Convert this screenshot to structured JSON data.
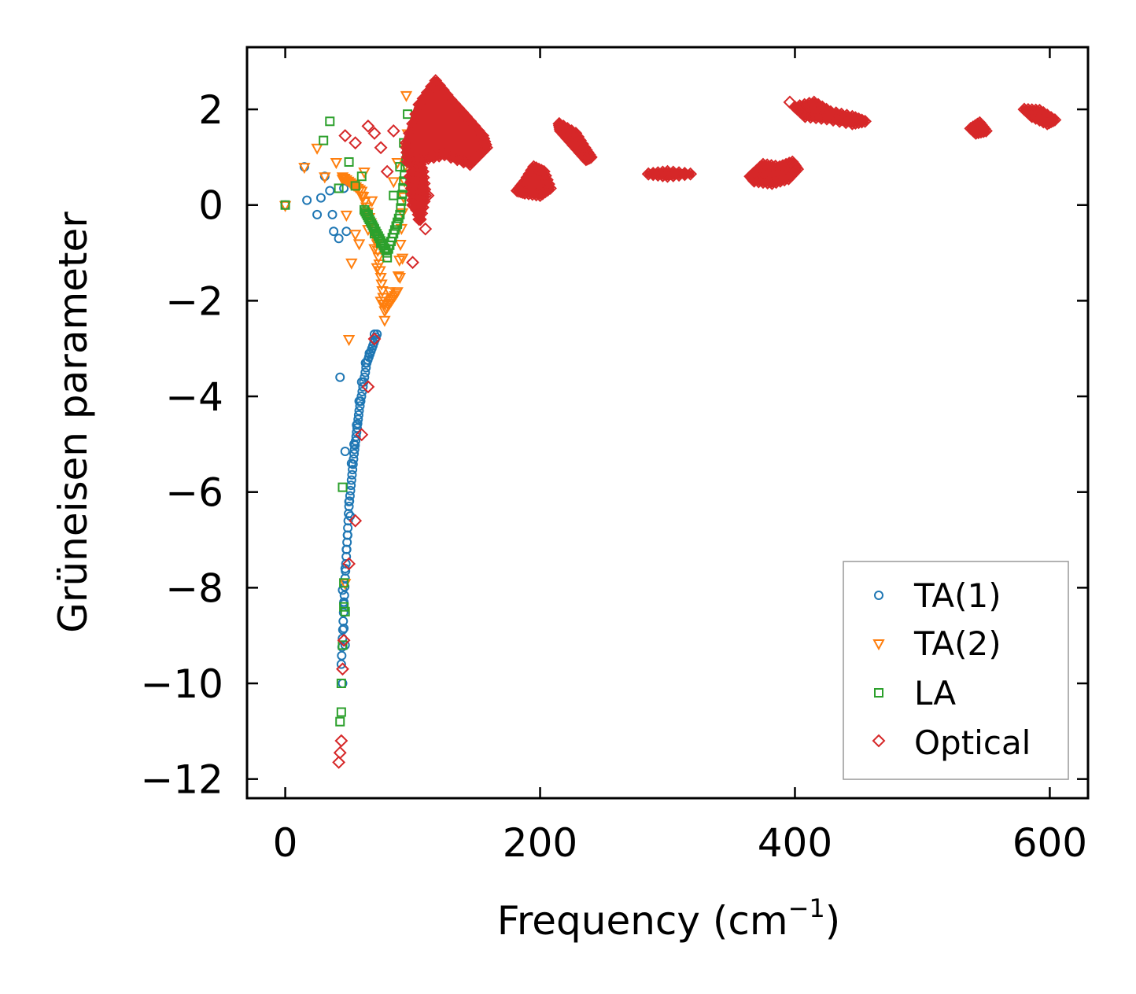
{
  "chart_data": {
    "type": "scatter",
    "title": "",
    "xlabel": "Frequency (cm",
    "xlabel_sup": "−1",
    "xlabel_close": ")",
    "ylabel": "Grüneisen parameter",
    "xlim": [
      -30,
      630
    ],
    "ylim": [
      -12.4,
      3.3
    ],
    "xticks": [
      0,
      200,
      400,
      600
    ],
    "xtick_labels": [
      "0",
      "200",
      "400",
      "600"
    ],
    "yticks": [
      2,
      0,
      -2,
      -4,
      -6,
      -8,
      -10,
      -12
    ],
    "ytick_labels": [
      "2",
      "0",
      "−2",
      "−4",
      "−6",
      "−8",
      "−10",
      "−12"
    ],
    "legend_position": "lower-right",
    "series": [
      {
        "name": "TA(1)",
        "marker": "circle",
        "color": "#1f77b4",
        "points": [
          [
            0,
            0
          ],
          [
            15,
            0.8
          ],
          [
            17,
            0.1
          ],
          [
            25,
            -0.2
          ],
          [
            28,
            0.15
          ],
          [
            31,
            0.6
          ],
          [
            35,
            0.3
          ],
          [
            37,
            -0.2
          ],
          [
            38,
            -0.55
          ],
          [
            42,
            -0.7
          ],
          [
            43,
            -3.6
          ],
          [
            46,
            0.35
          ],
          [
            48,
            -0.55
          ],
          [
            47,
            -5.15
          ],
          [
            45,
            -8.05
          ],
          [
            46,
            -8.85
          ],
          [
            45,
            -10
          ],
          [
            47,
            -9.2
          ],
          [
            50,
            -6.2
          ],
          [
            51,
            -6.5
          ],
          [
            52,
            -5.4
          ],
          [
            54,
            -5
          ],
          [
            56,
            -4.6
          ],
          [
            58,
            -4.1
          ],
          [
            60,
            -3.7
          ],
          [
            63,
            -3.3
          ],
          [
            66,
            -3.1
          ],
          [
            70,
            -2.7
          ],
          [
            48,
            -7.2
          ],
          [
            47,
            -7.6
          ],
          [
            46,
            -8.3
          ],
          [
            49,
            -6.9
          ]
        ],
        "trend": [
          [
            44,
            -9.6
          ],
          [
            47,
            -7.8
          ],
          [
            50,
            -6.3
          ],
          [
            54,
            -5.2
          ],
          [
            58,
            -4.3
          ],
          [
            64,
            -3.3
          ],
          [
            72,
            -2.7
          ]
        ]
      },
      {
        "name": "TA(2)",
        "marker": "triangle-down",
        "color": "#ff7f0e",
        "points": [
          [
            0,
            0
          ],
          [
            15,
            0.8
          ],
          [
            25,
            1.2
          ],
          [
            31,
            0.6
          ],
          [
            40,
            0.9
          ],
          [
            45,
            0.55
          ],
          [
            48,
            -0.2
          ],
          [
            50,
            -2.8
          ],
          [
            55,
            -0.6
          ],
          [
            58,
            -0.8
          ],
          [
            60,
            0.2
          ],
          [
            62,
            0.7
          ],
          [
            65,
            -0.5
          ],
          [
            68,
            0.1
          ],
          [
            70,
            -0.9
          ],
          [
            72,
            -1.3
          ],
          [
            75,
            -2
          ],
          [
            78,
            -2.4
          ],
          [
            82,
            -1.8
          ],
          [
            85,
            0.5
          ],
          [
            88,
            0.9
          ],
          [
            90,
            -1.5
          ],
          [
            92,
            -1.1
          ],
          [
            95,
            2.3
          ],
          [
            97,
            1.3
          ],
          [
            47,
            -7.9
          ],
          [
            52,
            -1.2
          ]
        ],
        "trend": [
          [
            45,
            0.6
          ],
          [
            60,
            0.3
          ],
          [
            72,
            -0.8
          ],
          [
            78,
            -2.2
          ],
          [
            88,
            -1.8
          ],
          [
            96,
            1.5
          ]
        ]
      },
      {
        "name": "LA",
        "marker": "square",
        "color": "#2ca02c",
        "points": [
          [
            0,
            0
          ],
          [
            30,
            1.35
          ],
          [
            35,
            1.75
          ],
          [
            42,
            0.35
          ],
          [
            45,
            -5.9
          ],
          [
            46,
            -8.4
          ],
          [
            45,
            -9.2
          ],
          [
            44,
            -10
          ],
          [
            44,
            -10.6
          ],
          [
            43,
            -10.8
          ],
          [
            50,
            0.9
          ],
          [
            55,
            0.4
          ],
          [
            60,
            0.6
          ],
          [
            65,
            -0.2
          ],
          [
            70,
            -0.6
          ],
          [
            75,
            -0.8
          ],
          [
            80,
            -1.1
          ],
          [
            85,
            0.2
          ],
          [
            88,
            -0.4
          ],
          [
            90,
            0.8
          ],
          [
            93,
            1.3
          ],
          [
            96,
            1.9
          ],
          [
            98,
            0.5
          ],
          [
            46,
            -7.9
          ],
          [
            47,
            -8.5
          ]
        ],
        "trend": [
          [
            62,
            -0.1
          ],
          [
            70,
            -0.5
          ],
          [
            80,
            -1.0
          ],
          [
            90,
            -0.2
          ],
          [
            96,
            1.2
          ]
        ]
      },
      {
        "name": "Optical",
        "marker": "diamond",
        "color": "#d62728",
        "points": [
          [
            42,
            -11.65
          ],
          [
            43,
            -11.45
          ],
          [
            44,
            -11.2
          ],
          [
            45,
            -9.7
          ],
          [
            46,
            -9.1
          ],
          [
            50,
            -7.5
          ],
          [
            55,
            -6.6
          ],
          [
            60,
            -4.8
          ],
          [
            65,
            -3.8
          ],
          [
            70,
            -2.8
          ],
          [
            47,
            1.45
          ],
          [
            55,
            1.3
          ],
          [
            65,
            1.65
          ],
          [
            70,
            1.5
          ],
          [
            75,
            1.2
          ],
          [
            80,
            0.7
          ],
          [
            85,
            1.55
          ],
          [
            100,
            0.0
          ],
          [
            105,
            -0.3
          ],
          [
            110,
            -0.5
          ],
          [
            100,
            -1.2
          ],
          [
            112,
            0.2
          ],
          [
            396,
            2.15
          ]
        ],
        "bands": [
          [
            [
              95,
              1.3
            ],
            [
              105,
              2.1
            ],
            [
              118,
              2.6
            ],
            [
              130,
              2.2
            ],
            [
              142,
              1.85
            ],
            [
              155,
              1.45
            ],
            [
              158,
              1.2
            ],
            [
              145,
              0.85
            ],
            [
              125,
              1.05
            ],
            [
              108,
              0.95
            ],
            [
              96,
              0.9
            ]
          ],
          [
            [
              98,
              0.6
            ],
            [
              104,
              1.0
            ],
            [
              108,
              0.7
            ],
            [
              110,
              0.2
            ],
            [
              106,
              -0.3
            ],
            [
              100,
              0.1
            ]
          ],
          [
            [
              182,
              0.3
            ],
            [
              188,
              0.5
            ],
            [
              195,
              0.8
            ],
            [
              203,
              0.7
            ],
            [
              208,
              0.35
            ],
            [
              200,
              0.2
            ],
            [
              188,
              0.25
            ]
          ],
          [
            [
              215,
              1.7
            ],
            [
              228,
              1.5
            ],
            [
              235,
              1.2
            ],
            [
              240,
              1.0
            ],
            [
              236,
              0.95
            ],
            [
              226,
              1.25
            ],
            [
              216,
              1.55
            ]
          ],
          [
            [
              285,
              0.65
            ],
            [
              300,
              0.7
            ],
            [
              318,
              0.65
            ],
            [
              300,
              0.6
            ]
          ],
          [
            [
              365,
              0.6
            ],
            [
              375,
              0.85
            ],
            [
              388,
              0.8
            ],
            [
              398,
              0.9
            ],
            [
              402,
              0.75
            ],
            [
              395,
              0.55
            ],
            [
              382,
              0.45
            ],
            [
              368,
              0.5
            ]
          ],
          [
            [
              400,
              2.05
            ],
            [
              415,
              2.15
            ],
            [
              428,
              1.95
            ],
            [
              445,
              1.85
            ],
            [
              455,
              1.75
            ],
            [
              445,
              1.7
            ],
            [
              425,
              1.8
            ],
            [
              408,
              1.85
            ]
          ],
          [
            [
              538,
              1.6
            ],
            [
              545,
              1.72
            ],
            [
              550,
              1.55
            ],
            [
              542,
              1.5
            ]
          ],
          [
            [
              580,
              2.0
            ],
            [
              592,
              1.98
            ],
            [
              604,
              1.78
            ],
            [
              598,
              1.7
            ],
            [
              586,
              1.85
            ]
          ]
        ]
      }
    ]
  }
}
